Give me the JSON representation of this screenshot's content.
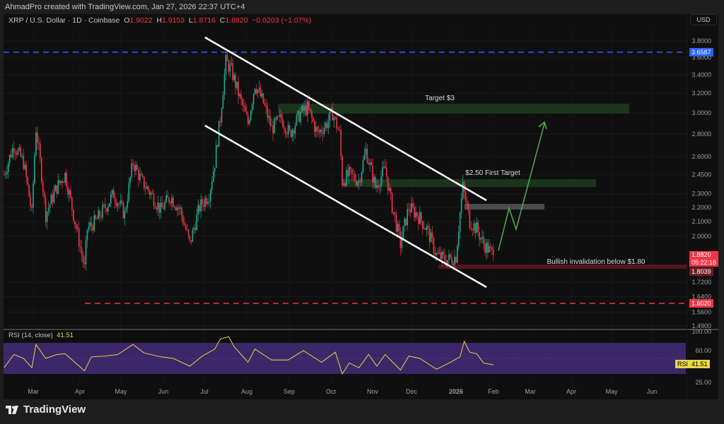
{
  "credit": "AhmadPro created with TradingView.com, Jan 27, 2026 22:37 UTC+4",
  "legend": {
    "symbol": "XRP / U.S. Dollar · 1D · Coinbase",
    "o_label": "O",
    "o": "1.9022",
    "h_label": "H",
    "h": "1.9153",
    "l_label": "L",
    "l": "1.8716",
    "c_label": "C",
    "c": "1.8820",
    "change": "−0.0203 (−1.07%)"
  },
  "currency": "USD",
  "price_axis": {
    "scale": "log",
    "ticks": [
      "3.8000",
      "3.6000",
      "3.4000",
      "3.2000",
      "3.0000",
      "2.8000",
      "2.6000",
      "2.4500",
      "2.3000",
      "2.2000",
      "2.1000",
      "2.0000",
      "1.7200",
      "1.6400",
      "1.5600",
      "1.4900"
    ],
    "tags": {
      "high_line": "3.6587",
      "last_price": "1.8820",
      "countdown": "05:22:16",
      "invalidation": "1.8039",
      "low_line": "1.6020"
    }
  },
  "time_axis": {
    "labels": [
      "Mar",
      "Apr",
      "May",
      "Jun",
      "Jul",
      "Aug",
      "Sep",
      "Oct",
      "Nov",
      "Dec",
      "2026",
      "Feb",
      "Mar",
      "Apr",
      "May",
      "Jun"
    ]
  },
  "annotations": {
    "target3": "Target $3",
    "target250": "$2.50 First Target",
    "invalidation": "Bullish invalidation below $1.80"
  },
  "rsi": {
    "title": "RSI (14, close)",
    "value": "41.51",
    "tag": "RSI",
    "ticks": [
      "100.00",
      "60.00",
      "25.00"
    ],
    "band": [
      30,
      70
    ]
  },
  "colors": {
    "up": "#22ab94",
    "down": "#f23645",
    "rsi_line": "#e8d54a",
    "rsi_band": "#3f2a6e",
    "blue_line": "#2962ff",
    "red_line": "#f23645",
    "arrow": "#4caf50",
    "zone_green": "#1d3a1f"
  },
  "brand": "TradingView",
  "chart_data": {
    "type": "candlestick",
    "title": "XRP / U.S. Dollar · 1D · Coinbase",
    "y_scale": "log",
    "ylim": [
      1.45,
      3.9
    ],
    "closes": [
      [
        "2025-02-08",
        2.45
      ],
      [
        "2025-02-15",
        2.7
      ],
      [
        "2025-02-22",
        2.55
      ],
      [
        "2025-02-28",
        2.15
      ],
      [
        "2025-03-03",
        2.85
      ],
      [
        "2025-03-10",
        2.15
      ],
      [
        "2025-03-18",
        2.35
      ],
      [
        "2025-03-24",
        2.45
      ],
      [
        "2025-03-31",
        2.1
      ],
      [
        "2025-04-07",
        1.8
      ],
      [
        "2025-04-09",
        2.05
      ],
      [
        "2025-04-15",
        2.1
      ],
      [
        "2025-04-22",
        2.2
      ],
      [
        "2025-04-28",
        2.3
      ],
      [
        "2025-05-06",
        2.15
      ],
      [
        "2025-05-12",
        2.55
      ],
      [
        "2025-05-18",
        2.4
      ],
      [
        "2025-05-25",
        2.3
      ],
      [
        "2025-06-01",
        2.18
      ],
      [
        "2025-06-08",
        2.28
      ],
      [
        "2025-06-15",
        2.18
      ],
      [
        "2025-06-22",
        1.95
      ],
      [
        "2025-06-29",
        2.2
      ],
      [
        "2025-07-06",
        2.3
      ],
      [
        "2025-07-10",
        2.55
      ],
      [
        "2025-07-14",
        2.95
      ],
      [
        "2025-07-18",
        3.55
      ],
      [
        "2025-07-22",
        3.45
      ],
      [
        "2025-07-28",
        3.15
      ],
      [
        "2025-08-03",
        2.9
      ],
      [
        "2025-08-08",
        3.3
      ],
      [
        "2025-08-14",
        3.1
      ],
      [
        "2025-08-20",
        2.85
      ],
      [
        "2025-08-27",
        2.95
      ],
      [
        "2025-09-02",
        2.8
      ],
      [
        "2025-09-10",
        3.0
      ],
      [
        "2025-09-15",
        3.05
      ],
      [
        "2025-09-22",
        2.8
      ],
      [
        "2025-09-29",
        2.9
      ],
      [
        "2025-10-03",
        3.0
      ],
      [
        "2025-10-08",
        2.8
      ],
      [
        "2025-10-10",
        2.4
      ],
      [
        "2025-10-15",
        2.45
      ],
      [
        "2025-10-22",
        2.4
      ],
      [
        "2025-10-27",
        2.65
      ],
      [
        "2025-11-03",
        2.35
      ],
      [
        "2025-11-10",
        2.5
      ],
      [
        "2025-11-14",
        2.25
      ],
      [
        "2025-11-21",
        1.95
      ],
      [
        "2025-11-27",
        2.2
      ],
      [
        "2025-12-03",
        2.15
      ],
      [
        "2025-12-10",
        2.05
      ],
      [
        "2025-12-17",
        1.88
      ],
      [
        "2025-12-24",
        1.85
      ],
      [
        "2025-12-31",
        1.87
      ],
      [
        "2026-01-05",
        2.35
      ],
      [
        "2026-01-10",
        2.1
      ],
      [
        "2026-01-15",
        2.05
      ],
      [
        "2026-01-20",
        1.95
      ],
      [
        "2026-01-27",
        1.882
      ]
    ],
    "horizontal_lines": [
      3.6587,
      1.602
    ],
    "zones": [
      [
        2.98,
        3.08
      ],
      [
        2.36,
        2.41
      ],
      [
        2.19,
        2.23
      ],
      [
        1.8,
        1.815
      ]
    ],
    "rsi_series": [
      [
        "2025-02-08",
        38
      ],
      [
        "2025-02-15",
        55
      ],
      [
        "2025-02-22",
        50
      ],
      [
        "2025-02-28",
        38
      ],
      [
        "2025-03-03",
        68
      ],
      [
        "2025-03-10",
        50
      ],
      [
        "2025-03-18",
        55
      ],
      [
        "2025-03-24",
        56
      ],
      [
        "2025-03-31",
        45
      ],
      [
        "2025-04-07",
        34
      ],
      [
        "2025-04-12",
        52
      ],
      [
        "2025-04-22",
        53
      ],
      [
        "2025-05-01",
        55
      ],
      [
        "2025-05-12",
        68
      ],
      [
        "2025-05-20",
        57
      ],
      [
        "2025-06-01",
        52
      ],
      [
        "2025-06-10",
        50
      ],
      [
        "2025-06-22",
        40
      ],
      [
        "2025-07-01",
        53
      ],
      [
        "2025-07-10",
        62
      ],
      [
        "2025-07-14",
        75
      ],
      [
        "2025-07-20",
        78
      ],
      [
        "2025-07-24",
        65
      ],
      [
        "2025-08-03",
        45
      ],
      [
        "2025-08-08",
        62
      ],
      [
        "2025-08-20",
        48
      ],
      [
        "2025-09-01",
        48
      ],
      [
        "2025-09-12",
        60
      ],
      [
        "2025-09-25",
        45
      ],
      [
        "2025-10-05",
        58
      ],
      [
        "2025-10-10",
        30
      ],
      [
        "2025-10-15",
        44
      ],
      [
        "2025-10-22",
        38
      ],
      [
        "2025-10-29",
        55
      ],
      [
        "2025-11-04",
        40
      ],
      [
        "2025-11-10",
        55
      ],
      [
        "2025-11-21",
        35
      ],
      [
        "2025-11-27",
        53
      ],
      [
        "2025-12-05",
        50
      ],
      [
        "2025-12-17",
        36
      ],
      [
        "2025-12-27",
        45
      ],
      [
        "2026-01-03",
        52
      ],
      [
        "2026-01-06",
        72
      ],
      [
        "2026-01-10",
        58
      ],
      [
        "2026-01-15",
        56
      ],
      [
        "2026-01-20",
        44
      ],
      [
        "2026-01-27",
        41.51
      ]
    ]
  }
}
